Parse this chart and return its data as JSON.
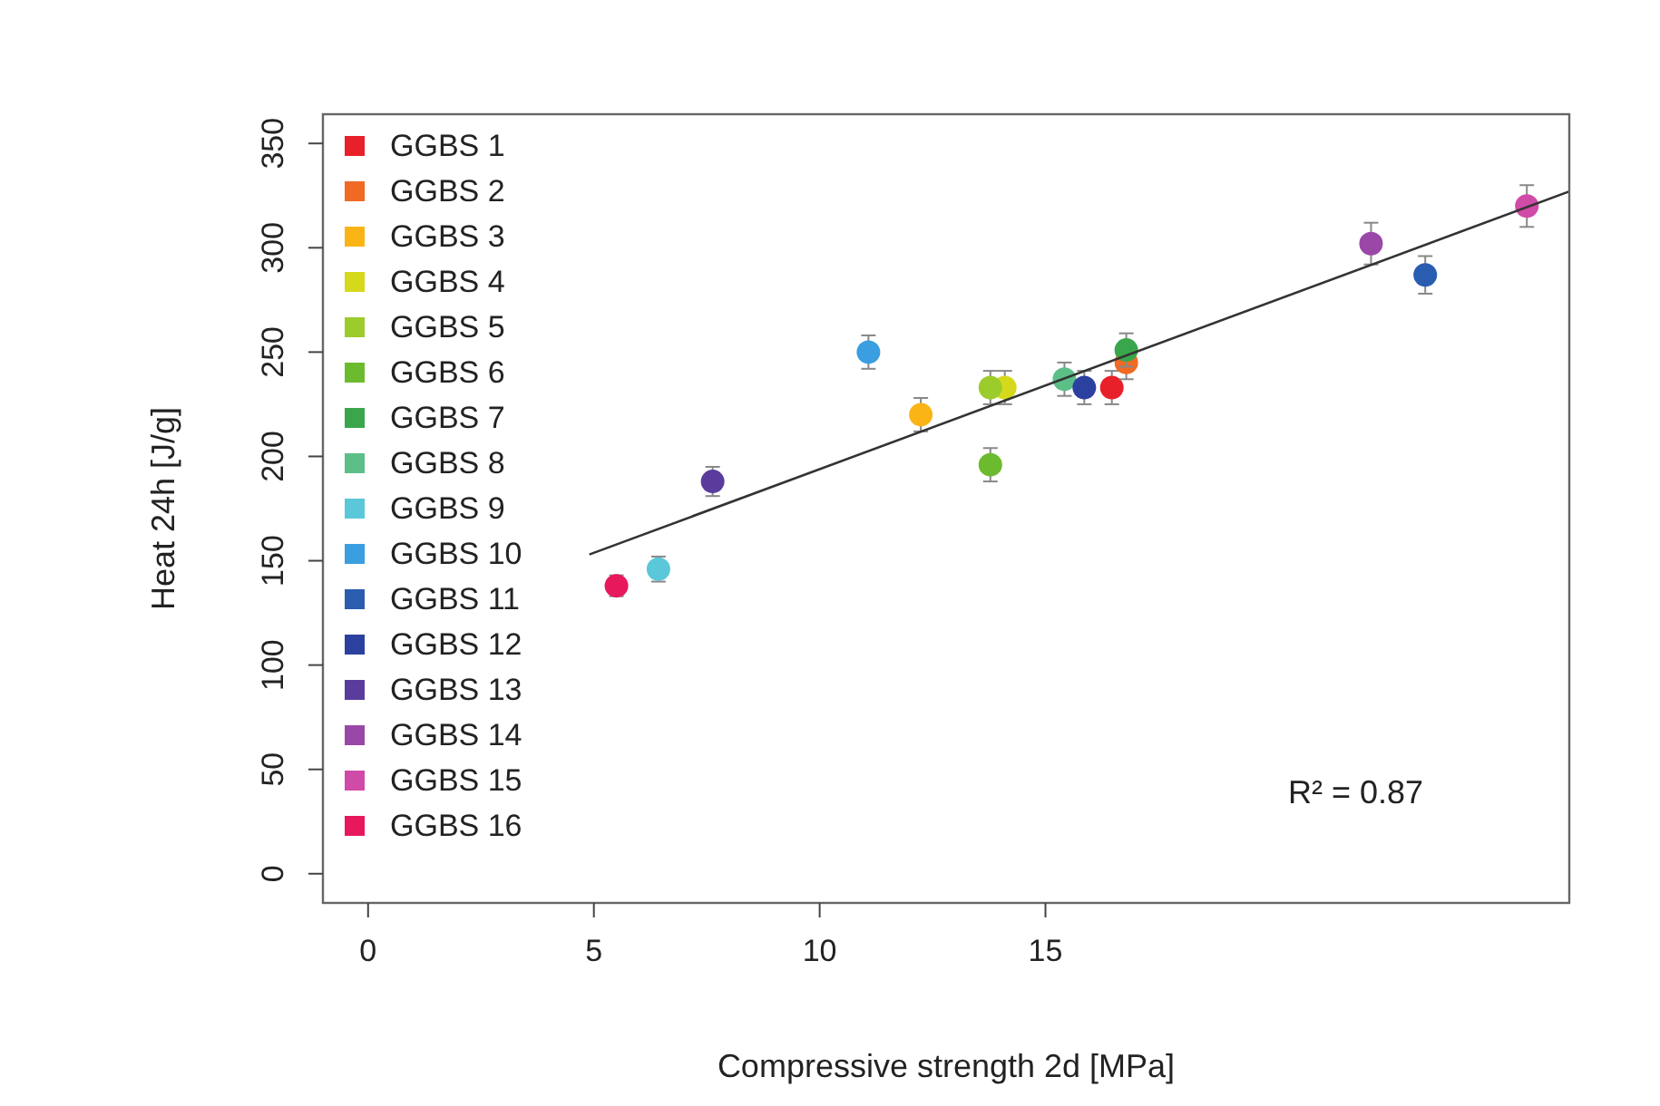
{
  "chart_data": {
    "type": "scatter",
    "xlabel": "Compressive strength 2d [MPa]",
    "ylabel": "Heat 24h [J/g]",
    "xlim": [
      -1,
      26.6
    ],
    "ylim": [
      -14,
      364
    ],
    "xticks": [
      0,
      5,
      10,
      15
    ],
    "yticks": [
      0,
      50,
      100,
      150,
      200,
      250,
      300,
      350
    ],
    "legend": "top left",
    "marker": "circle",
    "grid": false,
    "annotations": [
      "R² = 0.87"
    ],
    "series": [
      {
        "name": "GGBS 1",
        "color": "#e8202a",
        "x": [
          16.47
        ],
        "values": [
          233
        ],
        "errors": [
          8
        ]
      },
      {
        "name": "GGBS 2",
        "color": "#f06a24",
        "x": [
          16.79
        ],
        "values": [
          245
        ],
        "errors": [
          8
        ]
      },
      {
        "name": "GGBS 3",
        "color": "#fbb416",
        "x": [
          12.24
        ],
        "values": [
          220
        ],
        "errors": [
          8
        ]
      },
      {
        "name": "GGBS 4",
        "color": "#d6d81c",
        "x": [
          14.1
        ],
        "values": [
          233
        ],
        "errors": [
          8
        ]
      },
      {
        "name": "GGBS 5",
        "color": "#9ccb2c",
        "x": [
          13.78
        ],
        "values": [
          233
        ],
        "errors": [
          8
        ]
      },
      {
        "name": "GGBS 6",
        "color": "#6cbb2e",
        "x": [
          13.78
        ],
        "values": [
          196
        ],
        "errors": [
          8
        ]
      },
      {
        "name": "GGBS 7",
        "color": "#3aa64c",
        "x": [
          16.79
        ],
        "values": [
          251
        ],
        "errors": [
          8
        ]
      },
      {
        "name": "GGBS 8",
        "color": "#5cbf88",
        "x": [
          15.42
        ],
        "values": [
          237
        ],
        "errors": [
          8
        ]
      },
      {
        "name": "GGBS 9",
        "color": "#5ac8d8",
        "x": [
          6.43
        ],
        "values": [
          146
        ],
        "errors": [
          6
        ]
      },
      {
        "name": "GGBS 10",
        "color": "#3a9ee0",
        "x": [
          11.08
        ],
        "values": [
          250
        ],
        "errors": [
          8
        ]
      },
      {
        "name": "GGBS 11",
        "color": "#2a5cb0",
        "x": [
          23.41
        ],
        "values": [
          287
        ],
        "errors": [
          9
        ]
      },
      {
        "name": "GGBS 12",
        "color": "#2c40a0",
        "x": [
          15.86
        ],
        "values": [
          233
        ],
        "errors": [
          8
        ]
      },
      {
        "name": "GGBS 13",
        "color": "#5a3c9c",
        "x": [
          7.63
        ],
        "values": [
          188
        ],
        "errors": [
          7
        ]
      },
      {
        "name": "GGBS 14",
        "color": "#9a48a8",
        "x": [
          22.21
        ],
        "values": [
          302
        ],
        "errors": [
          10
        ]
      },
      {
        "name": "GGBS 15",
        "color": "#d04aa8",
        "x": [
          25.66
        ],
        "values": [
          320
        ],
        "errors": [
          10
        ]
      },
      {
        "name": "GGBS 16",
        "color": "#e8185c",
        "x": [
          5.5
        ],
        "values": [
          138
        ],
        "errors": [
          5
        ]
      },
      {
        "type": "line",
        "color": "#333333",
        "line_style": "solid",
        "marker": "none",
        "x": [
          4.9,
          26.6
        ],
        "values": [
          153,
          327
        ]
      }
    ]
  }
}
